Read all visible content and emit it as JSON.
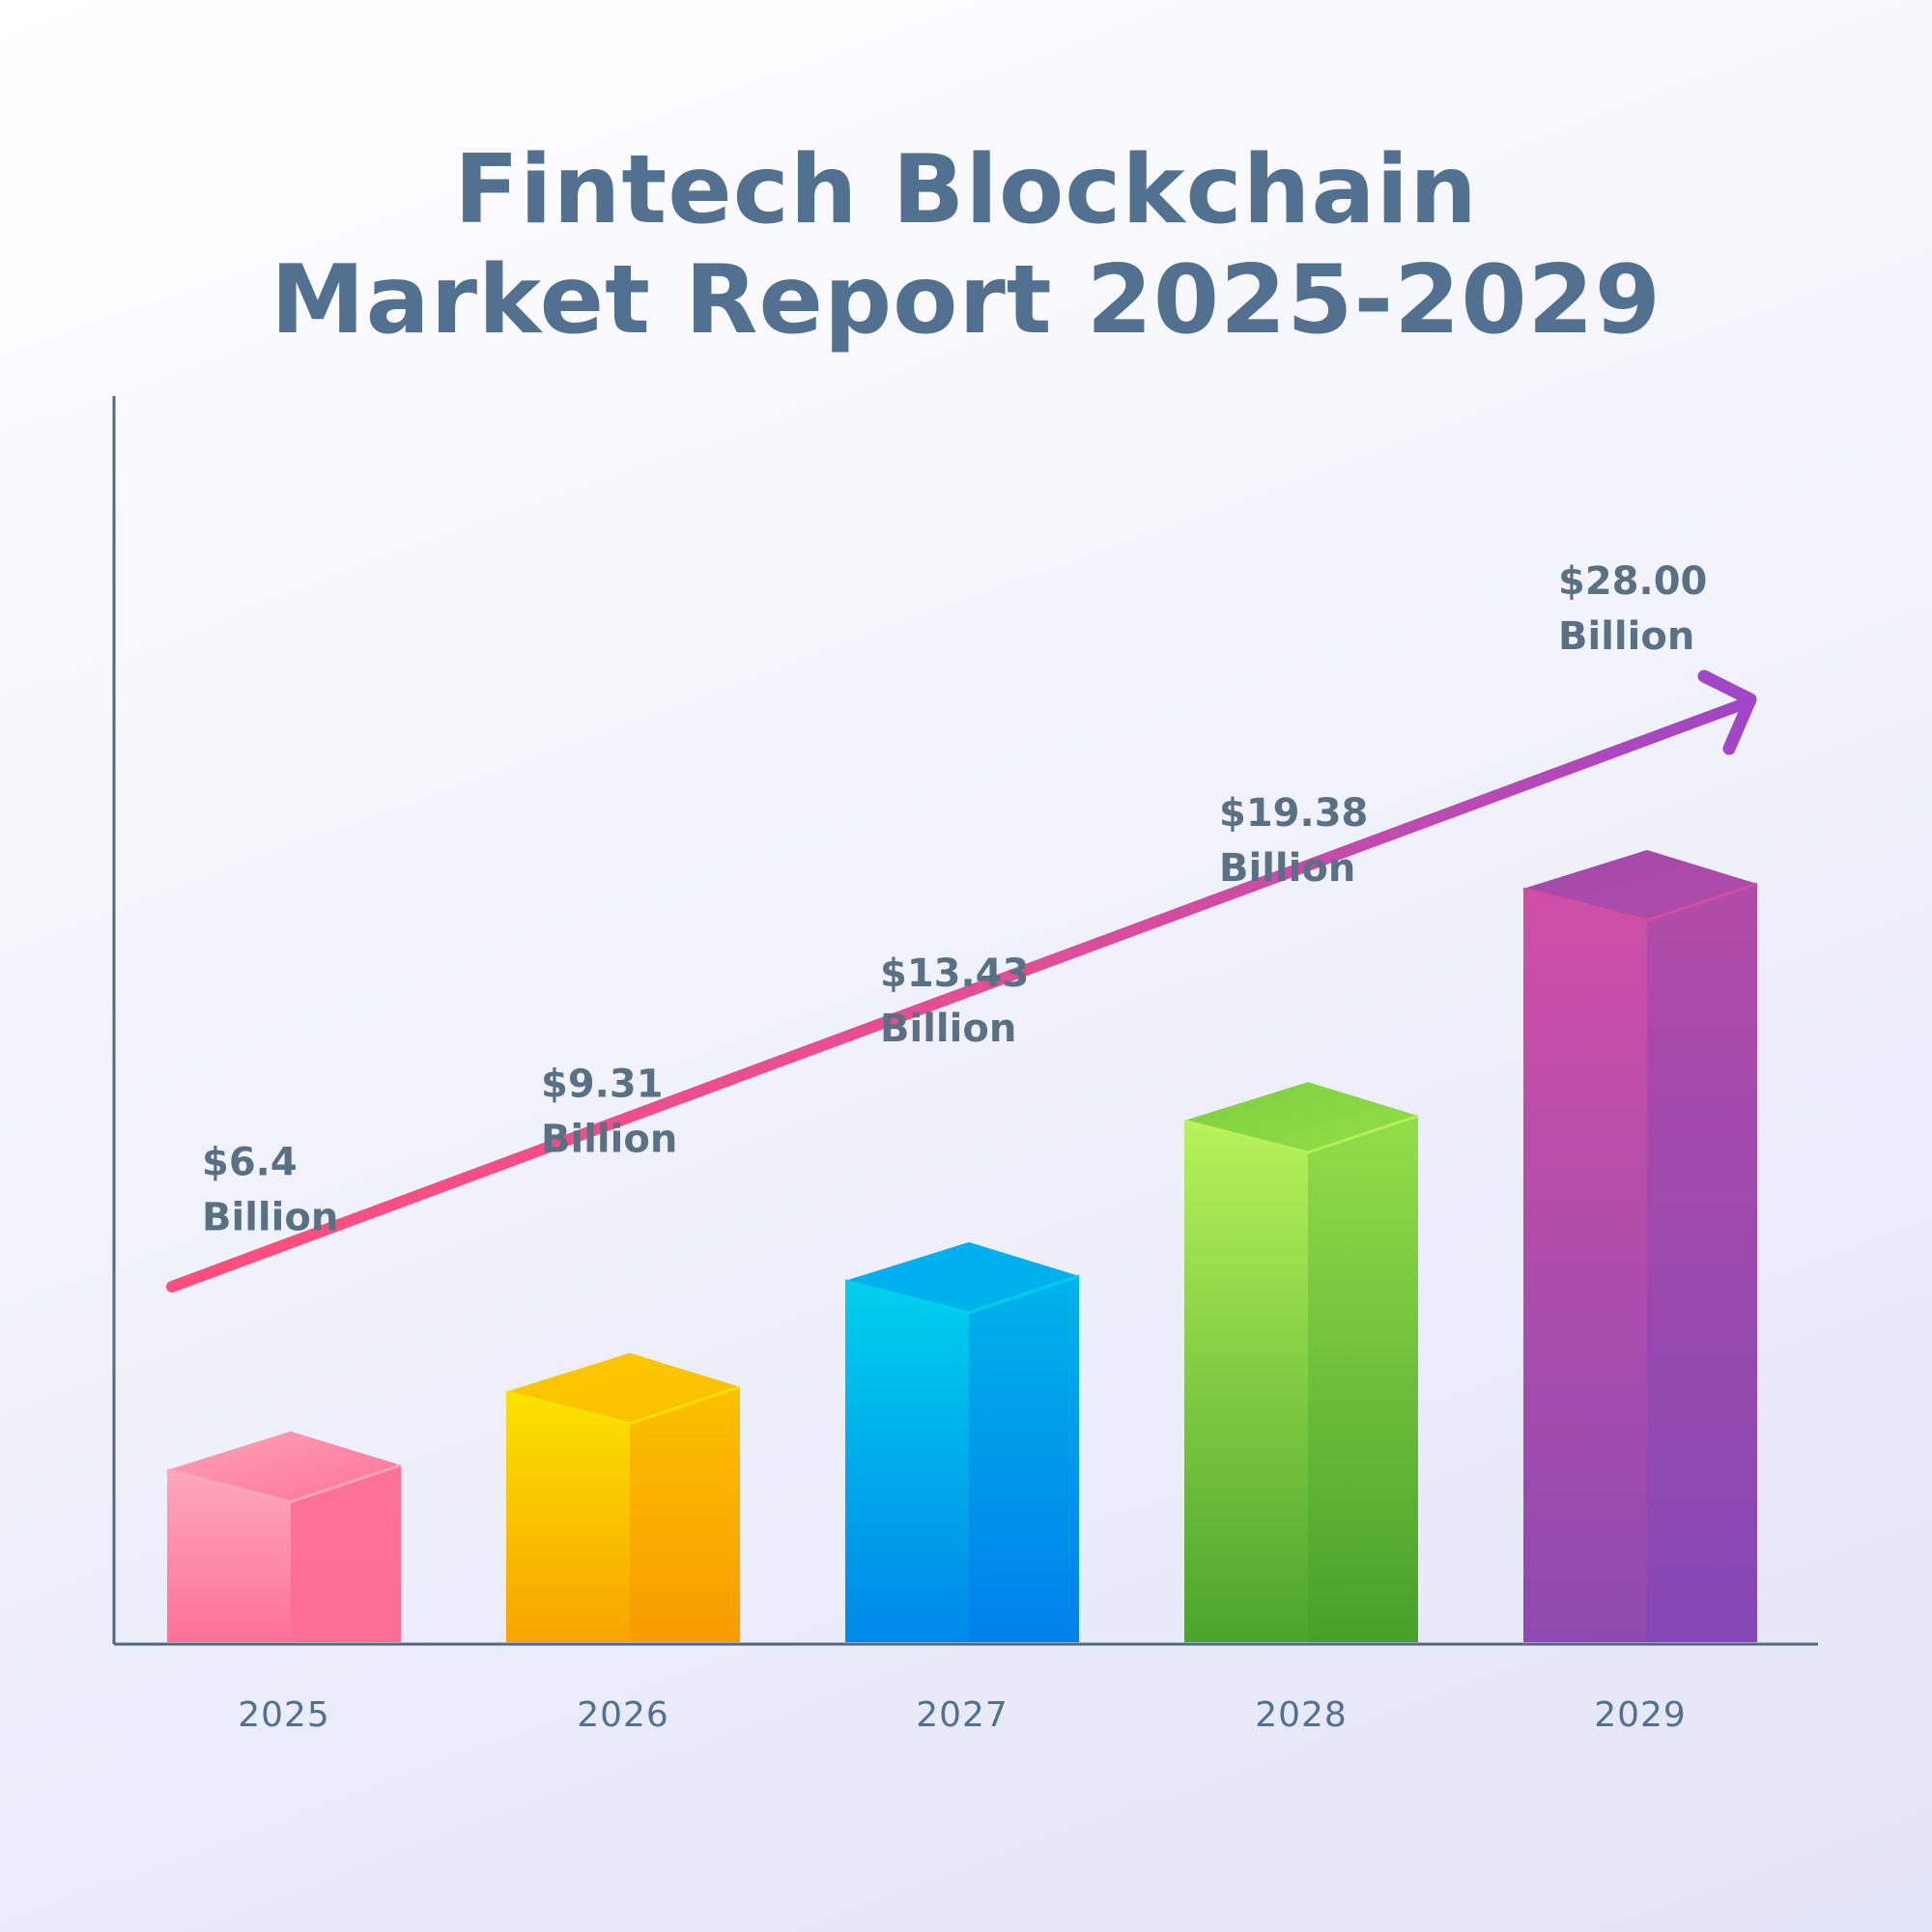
{
  "chart_data": {
    "type": "bar",
    "title": [
      "Fintech Blockchain",
      "Market Report 2025-2029"
    ],
    "categories": [
      "2025",
      "2026",
      "2027",
      "2028",
      "2029"
    ],
    "values": [
      6.4,
      9.31,
      13.43,
      19.38,
      28.0
    ],
    "value_labels": [
      [
        "$6.4",
        "Billion"
      ],
      [
        "$9.31",
        "Billion"
      ],
      [
        "$13.43",
        "Billion"
      ],
      [
        "$19.38",
        "Billion"
      ],
      [
        "$28.00",
        "Billion"
      ]
    ],
    "xlabel": "",
    "ylabel": "",
    "grid": false,
    "legend": "none",
    "trend_arrow": true,
    "colors": [
      {
        "front_top": "#fda7bd",
        "front_bottom": "#fe7199",
        "side_top": "#fe7298",
        "side_bottom": "#fd6d94",
        "top": "#fea3b8"
      },
      {
        "front_top": "#fbe200",
        "front_bottom": "#f8a400",
        "side_top": "#fbc000",
        "side_bottom": "#f89c00",
        "top": "#fbc800"
      },
      {
        "front_top": "#00d0ec",
        "front_bottom": "#0088ea",
        "side_top": "#00b2ea",
        "side_bottom": "#0080ea",
        "top": "#00aef0"
      },
      {
        "front_top": "#b7f35a",
        "front_bottom": "#4ca42c",
        "side_top": "#94de4a",
        "side_bottom": "#48a02a",
        "top": "#7ece3e"
      },
      {
        "front_top": "#d04fa6",
        "front_bottom": "#8e4ab0",
        "side_top": "#b24ba8",
        "side_bottom": "#8448b4",
        "top": "#a24aac"
      }
    ],
    "arrow_colors": [
      "#ff4f7c",
      "#a046c6"
    ],
    "axis_color": "#506983"
  }
}
